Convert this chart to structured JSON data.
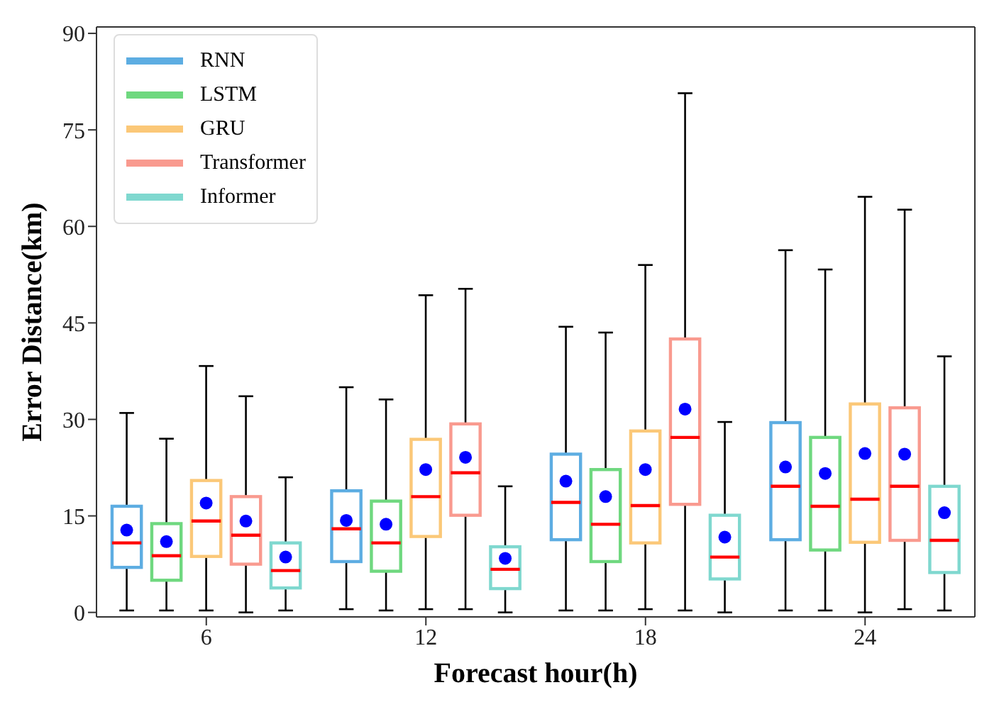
{
  "chart_data": {
    "type": "box",
    "xlabel": "Forecast hour(h)",
    "ylabel": "Error Distance(km)",
    "categories": [
      "6",
      "12",
      "18",
      "24"
    ],
    "ylim": [
      -0.7,
      91
    ],
    "yticks": [
      0,
      15,
      30,
      45,
      60,
      75,
      90
    ],
    "legend": "top left",
    "series": [
      {
        "name": "RNN",
        "color": "#5dade2",
        "boxes": [
          {
            "low": 0.3,
            "q1": 7,
            "median": 10.8,
            "q3": 16.5,
            "high": 31,
            "mean": 12.8
          },
          {
            "low": 0.5,
            "q1": 7.9,
            "median": 13,
            "q3": 18.9,
            "high": 35,
            "mean": 14.3
          },
          {
            "low": 0.3,
            "q1": 11.3,
            "median": 17.1,
            "q3": 24.6,
            "high": 44.4,
            "mean": 20.4
          },
          {
            "low": 0.3,
            "q1": 11.3,
            "median": 19.6,
            "q3": 29.5,
            "high": 56.3,
            "mean": 22.6
          }
        ]
      },
      {
        "name": "LSTM",
        "color": "#6fd87f",
        "boxes": [
          {
            "low": 0.3,
            "q1": 5,
            "median": 8.8,
            "q3": 13.8,
            "high": 27,
            "mean": 11
          },
          {
            "low": 0.3,
            "q1": 6.4,
            "median": 10.8,
            "q3": 17.3,
            "high": 33.1,
            "mean": 13.7
          },
          {
            "low": 0.3,
            "q1": 7.9,
            "median": 13.7,
            "q3": 22.2,
            "high": 43.5,
            "mean": 18
          },
          {
            "low": 0.3,
            "q1": 9.7,
            "median": 16.5,
            "q3": 27.2,
            "high": 53.3,
            "mean": 21.6
          }
        ]
      },
      {
        "name": "GRU",
        "color": "#fbc878",
        "boxes": [
          {
            "low": 0.3,
            "q1": 8.7,
            "median": 14.2,
            "q3": 20.5,
            "high": 38.3,
            "mean": 17
          },
          {
            "low": 0.5,
            "q1": 11.8,
            "median": 18,
            "q3": 26.9,
            "high": 49.3,
            "mean": 22.2
          },
          {
            "low": 0.5,
            "q1": 10.8,
            "median": 16.6,
            "q3": 28.2,
            "high": 54,
            "mean": 22.2
          },
          {
            "low": 0,
            "q1": 10.9,
            "median": 17.6,
            "q3": 32.4,
            "high": 64.6,
            "mean": 24.7
          }
        ]
      },
      {
        "name": "Transformer",
        "color": "#f99a8f",
        "boxes": [
          {
            "low": 0,
            "q1": 7.5,
            "median": 12,
            "q3": 18,
            "high": 33.6,
            "mean": 14.2
          },
          {
            "low": 0.5,
            "q1": 15.1,
            "median": 21.7,
            "q3": 29.3,
            "high": 50.3,
            "mean": 24.1
          },
          {
            "low": 0.3,
            "q1": 16.8,
            "median": 27.2,
            "q3": 42.5,
            "high": 80.7,
            "mean": 31.6
          },
          {
            "low": 0.5,
            "q1": 11.2,
            "median": 19.6,
            "q3": 31.8,
            "high": 62.6,
            "mean": 24.6
          }
        ]
      },
      {
        "name": "Informer",
        "color": "#7fd8cf",
        "boxes": [
          {
            "low": 0.3,
            "q1": 3.8,
            "median": 6.5,
            "q3": 10.8,
            "high": 21,
            "mean": 8.6
          },
          {
            "low": 0,
            "q1": 3.7,
            "median": 6.7,
            "q3": 10.2,
            "high": 19.6,
            "mean": 8.4
          },
          {
            "low": 0,
            "q1": 5.2,
            "median": 8.6,
            "q3": 15.1,
            "high": 29.6,
            "mean": 11.7
          },
          {
            "low": 0.3,
            "q1": 6.2,
            "median": 11.2,
            "q3": 19.6,
            "high": 39.8,
            "mean": 15.5
          }
        ]
      }
    ]
  }
}
